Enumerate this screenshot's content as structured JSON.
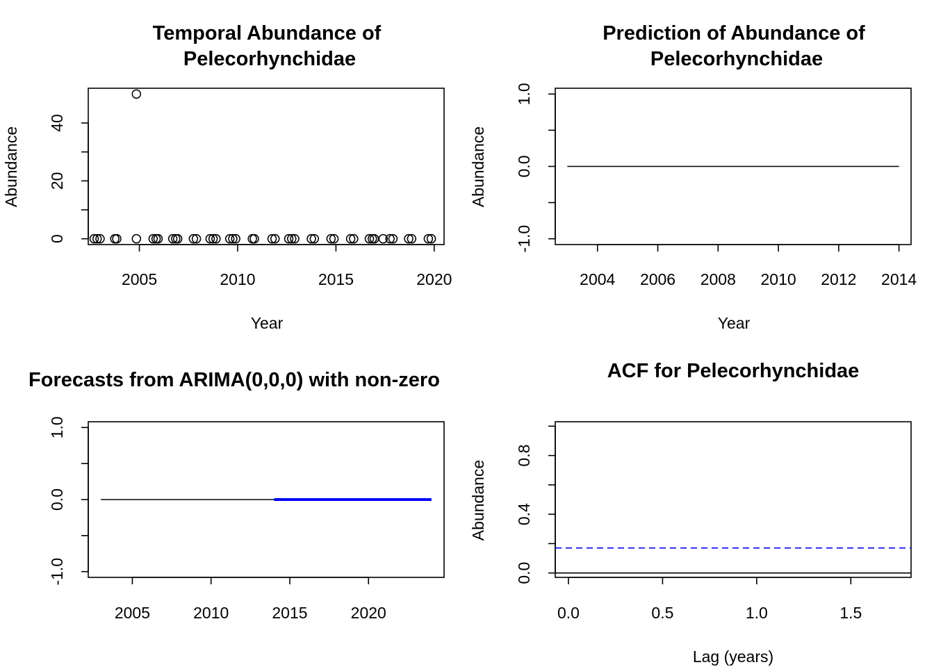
{
  "chart_data": [
    {
      "type": "scatter",
      "title_lines": [
        "Temporal Abundance of",
        "Pelecorhynchidae"
      ],
      "xlabel": "Year",
      "ylabel": "Abundance",
      "xlim": [
        2002.4,
        2020.5
      ],
      "ylim": [
        -2,
        52
      ],
      "xticks": [
        2005,
        2010,
        2015,
        2020
      ],
      "yticks": [
        0,
        20,
        40
      ],
      "points": [
        {
          "x": 2002.7,
          "y": 0
        },
        {
          "x": 2002.85,
          "y": 0
        },
        {
          "x": 2003.0,
          "y": 0
        },
        {
          "x": 2003.75,
          "y": 0
        },
        {
          "x": 2003.85,
          "y": 0
        },
        {
          "x": 2004.85,
          "y": 50
        },
        {
          "x": 2004.85,
          "y": 0
        },
        {
          "x": 2005.7,
          "y": 0
        },
        {
          "x": 2005.85,
          "y": 0
        },
        {
          "x": 2005.95,
          "y": 0
        },
        {
          "x": 2006.7,
          "y": 0
        },
        {
          "x": 2006.85,
          "y": 0
        },
        {
          "x": 2006.95,
          "y": 0
        },
        {
          "x": 2007.75,
          "y": 0
        },
        {
          "x": 2007.9,
          "y": 0
        },
        {
          "x": 2008.6,
          "y": 0
        },
        {
          "x": 2008.75,
          "y": 0
        },
        {
          "x": 2008.9,
          "y": 0
        },
        {
          "x": 2009.6,
          "y": 0
        },
        {
          "x": 2009.75,
          "y": 0
        },
        {
          "x": 2009.9,
          "y": 0
        },
        {
          "x": 2010.75,
          "y": 0
        },
        {
          "x": 2010.85,
          "y": 0
        },
        {
          "x": 2011.75,
          "y": 0
        },
        {
          "x": 2011.9,
          "y": 0
        },
        {
          "x": 2012.6,
          "y": 0
        },
        {
          "x": 2012.75,
          "y": 0
        },
        {
          "x": 2012.9,
          "y": 0
        },
        {
          "x": 2013.75,
          "y": 0
        },
        {
          "x": 2013.9,
          "y": 0
        },
        {
          "x": 2014.75,
          "y": 0
        },
        {
          "x": 2014.9,
          "y": 0
        },
        {
          "x": 2015.75,
          "y": 0
        },
        {
          "x": 2015.9,
          "y": 0
        },
        {
          "x": 2016.7,
          "y": 0
        },
        {
          "x": 2016.85,
          "y": 0
        },
        {
          "x": 2016.95,
          "y": 0
        },
        {
          "x": 2017.4,
          "y": 0
        },
        {
          "x": 2017.75,
          "y": 0
        },
        {
          "x": 2017.9,
          "y": 0
        },
        {
          "x": 2018.7,
          "y": 0
        },
        {
          "x": 2018.85,
          "y": 0
        },
        {
          "x": 2019.7,
          "y": 0
        },
        {
          "x": 2019.85,
          "y": 0
        }
      ]
    },
    {
      "type": "line",
      "title_lines": [
        "Prediction of Abundance of",
        "Pelecorhynchidae"
      ],
      "xlabel": "Year",
      "ylabel": "Abundance",
      "xlim": [
        2002.6,
        2014.4
      ],
      "ylim": [
        -1.08,
        1.08
      ],
      "xticks": [
        2004,
        2006,
        2008,
        2010,
        2012,
        2014
      ],
      "yticks": [
        -1.0,
        0.0,
        1.0
      ],
      "ytick_labels": [
        "-1.0",
        "0.0",
        "1.0"
      ],
      "series": [
        {
          "x": [
            2003,
            2014
          ],
          "y": [
            0,
            0
          ],
          "color": "#000000"
        }
      ]
    },
    {
      "type": "line",
      "title_lines": [
        "Forecasts from ARIMA(0,0,0) with non-zero"
      ],
      "xlabel": "",
      "ylabel": "",
      "xlim": [
        2002.2,
        2024.8
      ],
      "ylim": [
        -1.08,
        1.08
      ],
      "xticks": [
        2005,
        2010,
        2015,
        2020
      ],
      "yticks": [
        -1.0,
        0.0,
        1.0
      ],
      "ytick_labels": [
        "-1.0",
        "0.0",
        "1.0"
      ],
      "series": [
        {
          "x": [
            2003,
            2014
          ],
          "y": [
            0,
            0
          ],
          "color": "#000000",
          "width": 1.6
        },
        {
          "x": [
            2014,
            2024
          ],
          "y": [
            0,
            0
          ],
          "color": "#0000ff",
          "width": 4
        }
      ]
    },
    {
      "type": "line",
      "title_lines": [
        "ACF for Pelecorhynchidae"
      ],
      "xlabel": "Lag (years)",
      "ylabel": "Abundance",
      "xlim": [
        -0.07,
        1.82
      ],
      "ylim": [
        -0.03,
        1.03
      ],
      "xticks": [
        0.0,
        0.5,
        1.0,
        1.5
      ],
      "xtick_labels": [
        "0.0",
        "0.5",
        "1.0",
        "1.5"
      ],
      "yticks": [
        0.0,
        0.4,
        0.8
      ],
      "ytick_labels": [
        "0.0",
        "0.4",
        "0.8"
      ],
      "yminor": [
        0.2,
        0.6,
        1.0
      ],
      "hlines": [
        {
          "y": 0,
          "color": "#000000",
          "dash": ""
        },
        {
          "y": 0.17,
          "color": "#0000ff",
          "dash": "9,6"
        }
      ]
    }
  ]
}
